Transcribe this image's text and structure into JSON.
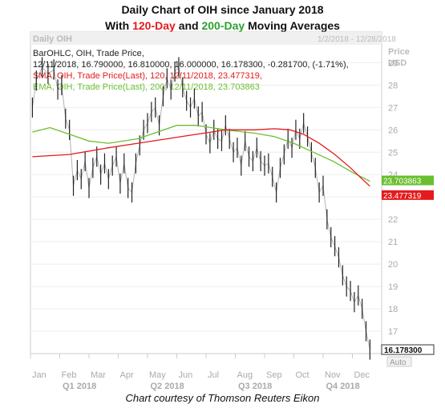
{
  "header": {
    "title_part1": "Daily Chart of OIH since January 2018",
    "title_with": "With ",
    "title_120": "120-Day",
    "title_and": " and ",
    "title_200": "200-Day",
    "title_end": " Moving Averages"
  },
  "caption": "Chart courtesy of Thomson Reuters Eikon",
  "chart_data": {
    "type": "line",
    "panel_label": "Daily OIH",
    "date_range": "1/2/2018 - 12/28/2018",
    "price_label_1": "Price",
    "price_label_2": "USD",
    "auto_label": "Auto",
    "legend": [
      {
        "text": "BarOHLC, OIH, Trade Price,",
        "color": "#222222"
      },
      {
        "text": "12/11/2018, 16.790000, 16.810000, 16.000000, 16.178300, -0.281700, (-1.71%),",
        "color": "#222222"
      },
      {
        "text": "SMA, OIH, Trade Price(Last),  120,  12/11/2018, 23.477319,",
        "color": "#e41a1c"
      },
      {
        "text": "EMA, OIH, Trade Price(Last),  200,  12/11/2018, 23.703863",
        "color": "#6abf2f"
      }
    ],
    "yticks": [
      17,
      18,
      19,
      20,
      21,
      22,
      23,
      24,
      25,
      26,
      27,
      28,
      29
    ],
    "ylim": [
      16.0,
      29.8
    ],
    "xticks": [
      "Jan",
      "Feb",
      "Mar",
      "Apr",
      "May",
      "Jun",
      "Jul",
      "Aug",
      "Sep",
      "Oct",
      "Nov",
      "Dec"
    ],
    "quarters": [
      "Q1 2018",
      "Q2 2018",
      "Q3 2018",
      "Q4 2018"
    ],
    "price_series": [
      [
        1,
        27.0
      ],
      [
        3,
        28.2
      ],
      [
        6,
        28.8
      ],
      [
        9,
        28.5
      ],
      [
        12,
        28.7
      ],
      [
        14,
        27.8
      ],
      [
        16,
        28.0
      ],
      [
        18,
        26.5
      ],
      [
        20,
        26.0
      ],
      [
        22,
        23.5
      ],
      [
        24,
        24.2
      ],
      [
        26,
        23.8
      ],
      [
        28,
        24.6
      ],
      [
        30,
        23.4
      ],
      [
        32,
        24.3
      ],
      [
        34,
        24.8
      ],
      [
        36,
        24.0
      ],
      [
        38,
        24.5
      ],
      [
        40,
        23.8
      ],
      [
        42,
        24.4
      ],
      [
        44,
        24.8
      ],
      [
        46,
        23.6
      ],
      [
        48,
        24.5
      ],
      [
        50,
        23.4
      ],
      [
        52,
        23.2
      ],
      [
        54,
        24.5
      ],
      [
        56,
        25.3
      ],
      [
        58,
        26.0
      ],
      [
        60,
        26.3
      ],
      [
        62,
        26.8
      ],
      [
        64,
        27.0
      ],
      [
        66,
        26.2
      ],
      [
        68,
        27.5
      ],
      [
        70,
        28.3
      ],
      [
        72,
        27.8
      ],
      [
        74,
        28.6
      ],
      [
        76,
        28.8
      ],
      [
        78,
        27.9
      ],
      [
        80,
        27.3
      ],
      [
        82,
        27.0
      ],
      [
        84,
        27.4
      ],
      [
        86,
        26.6
      ],
      [
        88,
        26.8
      ],
      [
        90,
        25.8
      ],
      [
        92,
        25.4
      ],
      [
        94,
        26.0
      ],
      [
        96,
        25.6
      ],
      [
        98,
        25.5
      ],
      [
        100,
        26.2
      ],
      [
        102,
        25.6
      ],
      [
        104,
        25.0
      ],
      [
        106,
        25.2
      ],
      [
        108,
        24.4
      ],
      [
        110,
        25.5
      ],
      [
        112,
        24.8
      ],
      [
        114,
        24.6
      ],
      [
        116,
        25.2
      ],
      [
        118,
        24.6
      ],
      [
        120,
        24.4
      ],
      [
        122,
        24.5
      ],
      [
        124,
        23.9
      ],
      [
        126,
        23.2
      ],
      [
        128,
        24.3
      ],
      [
        130,
        24.9
      ],
      [
        132,
        25.6
      ],
      [
        134,
        25.2
      ],
      [
        136,
        26.0
      ],
      [
        138,
        25.6
      ],
      [
        140,
        26.3
      ],
      [
        142,
        25.7
      ],
      [
        144,
        25.0
      ],
      [
        146,
        24.3
      ],
      [
        148,
        23.2
      ],
      [
        150,
        23.5
      ],
      [
        152,
        22.0
      ],
      [
        154,
        21.2
      ],
      [
        156,
        20.8
      ],
      [
        158,
        20.3
      ],
      [
        160,
        19.5
      ],
      [
        162,
        19.0
      ],
      [
        164,
        18.8
      ],
      [
        166,
        18.3
      ],
      [
        168,
        18.6
      ],
      [
        170,
        18.0
      ],
      [
        172,
        17.0
      ],
      [
        174,
        16.18
      ]
    ],
    "sma_120": [
      [
        1,
        24.8
      ],
      [
        20,
        24.9
      ],
      [
        40,
        25.2
      ],
      [
        55,
        25.4
      ],
      [
        70,
        25.6
      ],
      [
        85,
        25.8
      ],
      [
        100,
        26.0
      ],
      [
        115,
        26.0
      ],
      [
        125,
        26.05
      ],
      [
        133,
        26.0
      ],
      [
        140,
        25.8
      ],
      [
        148,
        25.4
      ],
      [
        156,
        24.9
      ],
      [
        164,
        24.3
      ],
      [
        170,
        23.8
      ],
      [
        174,
        23.48
      ]
    ],
    "ema_200": [
      [
        1,
        25.9
      ],
      [
        10,
        26.1
      ],
      [
        20,
        25.8
      ],
      [
        30,
        25.5
      ],
      [
        40,
        25.4
      ],
      [
        55,
        25.6
      ],
      [
        65,
        25.9
      ],
      [
        75,
        26.2
      ],
      [
        85,
        26.2
      ],
      [
        100,
        26.0
      ],
      [
        115,
        25.85
      ],
      [
        125,
        25.7
      ],
      [
        135,
        25.4
      ],
      [
        145,
        25.0
      ],
      [
        155,
        24.6
      ],
      [
        165,
        24.1
      ],
      [
        174,
        23.7
      ]
    ],
    "last_ema_value": "23.703863",
    "last_sma_value": "23.477319",
    "last_price_value": "16.178300",
    "ema_color": "#6abf2f",
    "sma_color": "#e41a1c",
    "price_color": "#222222"
  }
}
